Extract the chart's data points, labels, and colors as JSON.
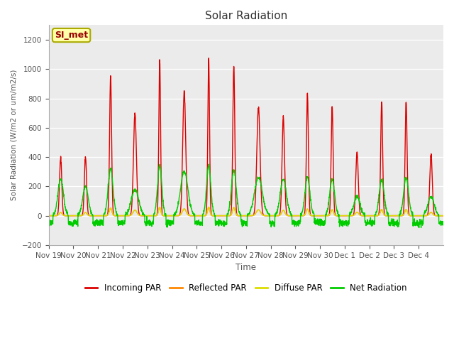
{
  "title": "Solar Radiation",
  "xlabel": "Time",
  "ylabel": "Solar Radiation (W/m2 or um/m2/s)",
  "ylim": [
    -200,
    1300
  ],
  "yticks": [
    -200,
    0,
    200,
    400,
    600,
    800,
    1000,
    1200
  ],
  "label_text": "SI_met",
  "fig_facecolor": "#ffffff",
  "plot_bg_color": "#ebebeb",
  "series": {
    "incoming_par": {
      "color": "#dd0000",
      "label": "Incoming PAR",
      "lw": 1.0
    },
    "reflected_par": {
      "color": "#ff8800",
      "label": "Reflected PAR",
      "lw": 1.0
    },
    "diffuse_par": {
      "color": "#dddd00",
      "label": "Diffuse PAR",
      "lw": 1.0
    },
    "net_radiation": {
      "color": "#00cc00",
      "label": "Net Radiation",
      "lw": 1.0
    }
  },
  "x_tick_labels": [
    "Nov 19",
    "Nov 20",
    "Nov 21",
    "Nov 22",
    "Nov 23",
    "Nov 24",
    "Nov 25",
    "Nov 26",
    "Nov 27",
    "Nov 28",
    "Nov 29",
    "Nov 30",
    "Dec 1",
    "Dec 2",
    "Dec 3",
    "Dec 4"
  ],
  "n_days": 16,
  "pts_per_day": 144,
  "incoming_peaks": [
    400,
    400,
    950,
    700,
    1060,
    850,
    1070,
    1030,
    740,
    670,
    830,
    750,
    440,
    780,
    780,
    420
  ],
  "incoming_widths": [
    0.045,
    0.045,
    0.04,
    0.06,
    0.035,
    0.06,
    0.035,
    0.04,
    0.065,
    0.05,
    0.04,
    0.04,
    0.05,
    0.04,
    0.04,
    0.05
  ],
  "net_peaks": [
    250,
    200,
    320,
    180,
    340,
    300,
    340,
    310,
    260,
    250,
    260,
    250,
    130,
    250,
    260,
    130
  ],
  "net_night": -50,
  "reflected_scale": 0.055,
  "diffuse_scale": 0.055
}
